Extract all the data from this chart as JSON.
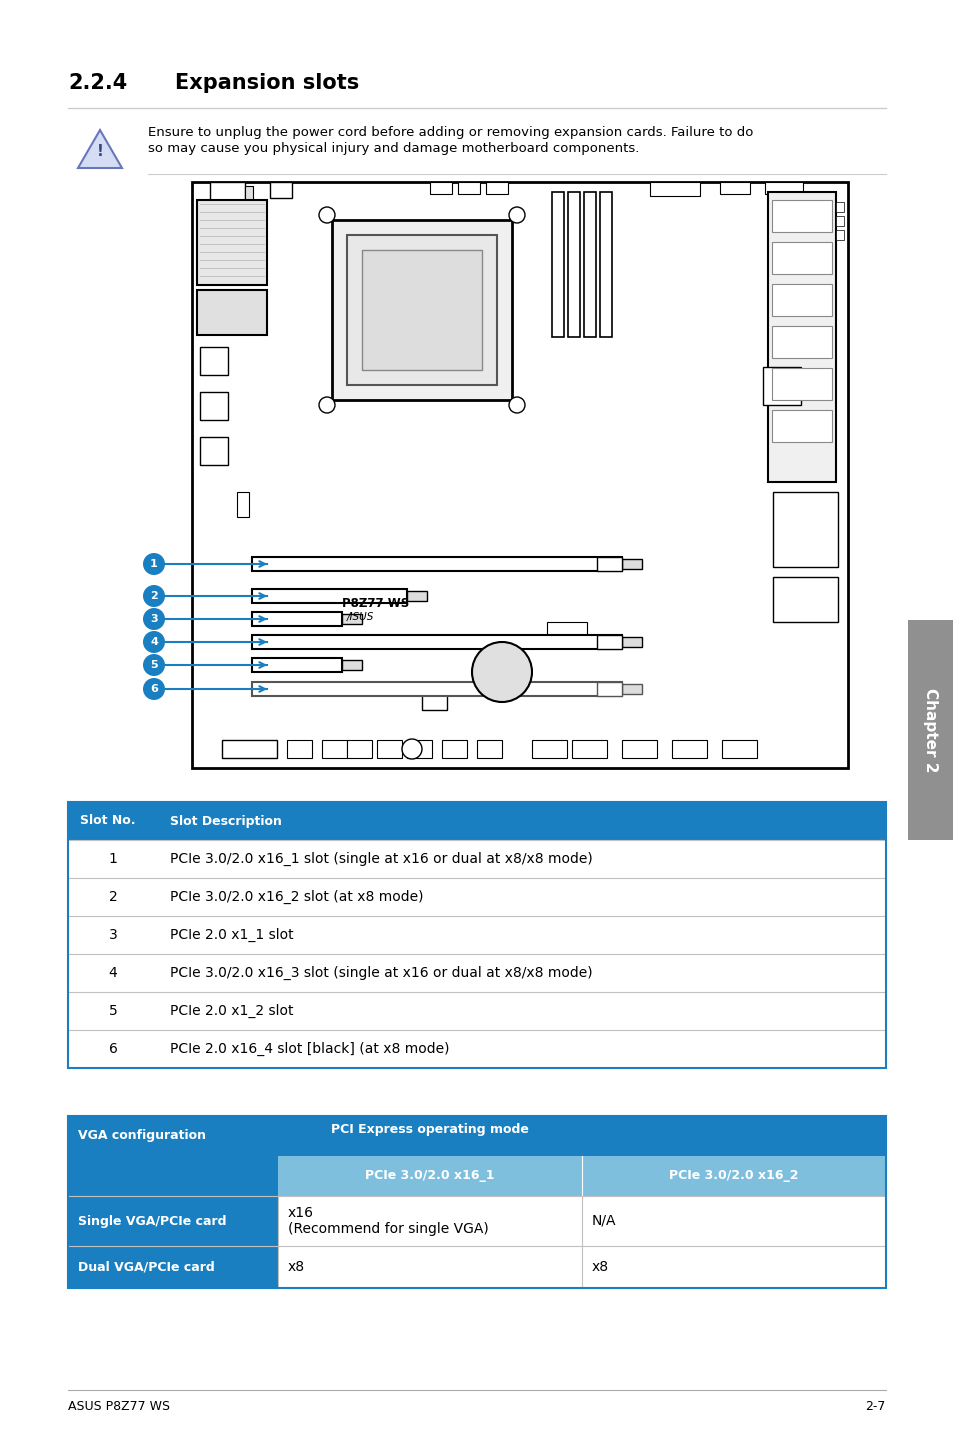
{
  "title_num": "2.2.4",
  "title_text": "Expansion slots",
  "warning_text1": "Ensure to unplug the power cord before adding or removing expansion cards. Failure to do",
  "warning_text2": "so may cause you physical injury and damage motherboard components.",
  "slot_table_header": [
    "Slot No.",
    "Slot Description"
  ],
  "slot_table_rows": [
    [
      "1",
      "PCIe 3.0/2.0 x16_1 slot (single at x16 or dual at x8/x8 mode)"
    ],
    [
      "2",
      "PCIe 3.0/2.0 x16_2 slot (at x8 mode)"
    ],
    [
      "3",
      "PCIe 2.0 x1_1 slot"
    ],
    [
      "4",
      "PCIe 3.0/2.0 x16_3 slot (single at x16 or dual at x8/x8 mode)"
    ],
    [
      "5",
      "PCIe 2.0 x1_2 slot"
    ],
    [
      "6",
      "PCIe 2.0 x16_4 slot [black] (at x8 mode)"
    ]
  ],
  "vga_table_header_top": "PCI Express operating mode",
  "vga_table_col1": "VGA configuration",
  "vga_table_col2": "PCIe 3.0/2.0 x16_1",
  "vga_table_col3": "PCIe 3.0/2.0 x16_2",
  "vga_row1_col1": "Single VGA/PCIe card",
  "vga_row1_col2a": "x16",
  "vga_row1_col2b": "(Recommend for single VGA)",
  "vga_row1_col3": "N/A",
  "vga_row2_col1": "Dual VGA/PCIe card",
  "vga_row2_col2": "x8",
  "vga_row2_col3": "x8",
  "footer_left": "ASUS P8Z77 WS",
  "footer_right": "2-7",
  "blue_header": "#1a7fc1",
  "light_blue": "#5ba8d4",
  "lighter_blue": "#7fbfde",
  "table_border": "#c0c0c0",
  "chapter_tab_color": "#909090",
  "background": "#ffffff"
}
